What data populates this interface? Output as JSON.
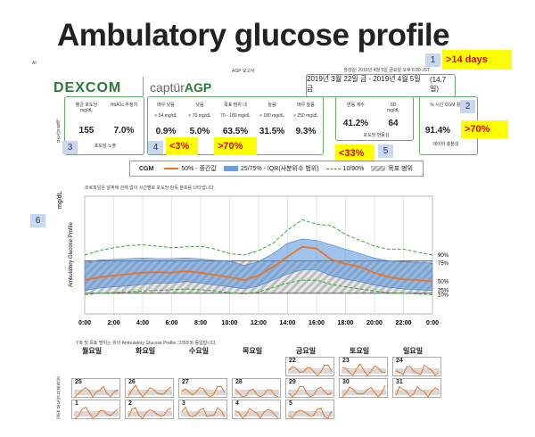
{
  "slide_title": "Ambulatory glucose profile",
  "report": {
    "header_title": "AGP 보고서",
    "header_right": "생성일: 2019년 4월 5일 금요일 오후 6:30 JST",
    "brand": "DEXCOM",
    "product": "captür",
    "product_accent": "AGP",
    "date_range": "2019년 3월 22일 금 - 2019년 4월 5일 금",
    "days": "(14.7일)",
    "side_label_top": "AI",
    "intro_note": "프로파일은 날짜에 관계 없이 시간별로 포도당 판독 분포를 나타냅니다.",
    "daily_note": "Y축 및 목표 범위는 위의 Ambulatory Glucose Profile 그래프와 동일합니다."
  },
  "callouts": [
    {
      "num": "1",
      "text": ">14 days"
    },
    {
      "num": "2",
      "text": ">70%"
    },
    {
      "num": "3",
      "text": ""
    },
    {
      "num": "4",
      "text_a": "<3%",
      "text_b": ">70%"
    },
    {
      "num": "5",
      "text": "<33%"
    },
    {
      "num": "6",
      "text": ""
    }
  ],
  "stats": {
    "mean": {
      "h1": "평균 포도당",
      "h2": "mg/dL",
      "value": "155",
      "sub": "포도당 노출"
    },
    "a1c": {
      "h1": "HbA1c 추정치",
      "h2": "",
      "value": "7.0%"
    },
    "side_label": "포도당 통계",
    "ranges": [
      {
        "h1": "매우 낮음",
        "h2": "< 54 mg/dL",
        "value": "0.9%"
      },
      {
        "h1": "낮음",
        "h2": "< 70 mg/dL",
        "value": "5.0%"
      },
      {
        "h1": "목표 범위 내",
        "h2": "70 - 180 mg/dL",
        "value": "63.5%"
      },
      {
        "h1": "높음",
        "h2": "> 180 mg/dL",
        "value": "31.5%"
      },
      {
        "h1": "매우 높음",
        "h2": "> 250 mg/dL",
        "value": "9.3%"
      }
    ],
    "cv": {
      "h1": "변동 계수",
      "value": "41.2%"
    },
    "sd": {
      "h1": "SD",
      "h2": "mg/dL",
      "value": "64",
      "sub": "포도당 변동성"
    },
    "cgm_active": {
      "h1": "% 시간 CGM 활성화",
      "value": "91.4%",
      "sub": "데이터 충분성"
    }
  },
  "legend": {
    "label": "CGM",
    "median": "50% - 중간값",
    "iqr": "25/75% - IQR(사분위수 범위)",
    "p10_90": "10/90%",
    "target": "목표 범위"
  },
  "chart_data": {
    "type": "area",
    "ylabel": "mg/dL",
    "side_title": "Ambulatory Glucose Profile",
    "x_ticks": [
      "0:00",
      "2:00",
      "4:00",
      "6:00",
      "8:00",
      "10:00",
      "12:00",
      "14:00",
      "16:00",
      "18:00",
      "20:00",
      "22:00",
      "0:00"
    ],
    "x": [
      0,
      1,
      2,
      3,
      4,
      5,
      6,
      7,
      8,
      9,
      10,
      11,
      12,
      13,
      14,
      15,
      16,
      17,
      18,
      19,
      20,
      21,
      22,
      23,
      24
    ],
    "ylim": [
      0,
      400
    ],
    "target_range": [
      70,
      180
    ],
    "right_labels": [
      "90%",
      "75%",
      "50%",
      "25%",
      "10%"
    ],
    "series": [
      {
        "name": "90%",
        "values": [
          200,
          215,
          225,
          232,
          235,
          230,
          225,
          228,
          230,
          220,
          205,
          200,
          215,
          240,
          285,
          320,
          305,
          300,
          270,
          250,
          230,
          220,
          220,
          210,
          200
        ]
      },
      {
        "name": "75%",
        "values": [
          175,
          183,
          185,
          188,
          190,
          188,
          188,
          190,
          187,
          182,
          180,
          165,
          178,
          205,
          240,
          255,
          250,
          235,
          220,
          205,
          190,
          180,
          178,
          175,
          172
        ]
      },
      {
        "name": "50%",
        "values": [
          115,
          125,
          130,
          135,
          140,
          142,
          140,
          145,
          140,
          132,
          125,
          115,
          130,
          160,
          195,
          228,
          222,
          185,
          170,
          160,
          140,
          125,
          118,
          115,
          110
        ]
      },
      {
        "name": "25%",
        "values": [
          80,
          88,
          92,
          95,
          100,
          105,
          105,
          110,
          105,
          98,
          92,
          85,
          95,
          115,
          135,
          150,
          150,
          130,
          118,
          110,
          98,
          90,
          85,
          82,
          80
        ]
      },
      {
        "name": "10%",
        "values": [
          65,
          70,
          72,
          75,
          78,
          80,
          82,
          85,
          82,
          78,
          72,
          68,
          75,
          90,
          105,
          115,
          115,
          100,
          92,
          85,
          78,
          72,
          70,
          68,
          65
        ]
      }
    ]
  },
  "daily": {
    "weekdays": [
      "월요일",
      "화요일",
      "수요일",
      "목요일",
      "금요일",
      "토요일",
      "일요일"
    ],
    "side_label": "일일 포도당 프로파일",
    "weeks": [
      [
        "",
        "",
        "",
        "",
        "22",
        "23",
        "24"
      ],
      [
        "25",
        "26",
        "27",
        "28",
        "29",
        "30",
        "31"
      ],
      [
        "1",
        "2",
        "3",
        "4",
        "5",
        "",
        ""
      ]
    ]
  }
}
